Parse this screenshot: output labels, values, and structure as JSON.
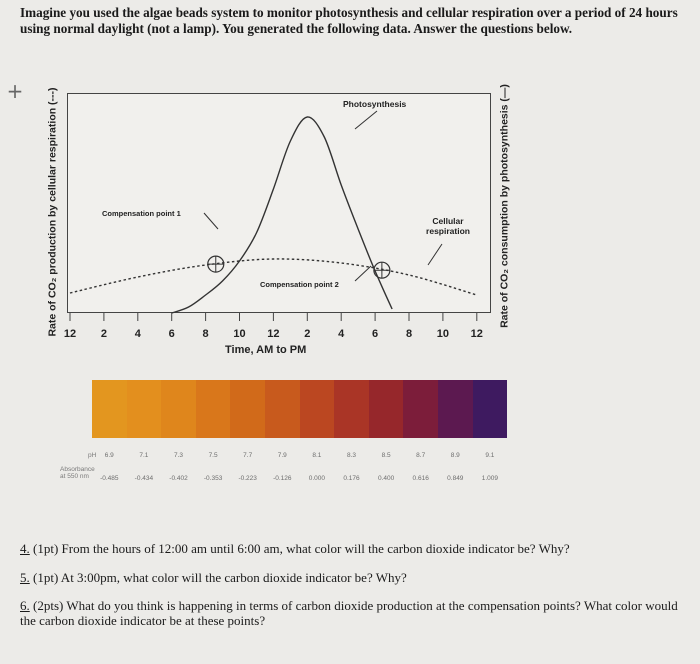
{
  "intro_text": "Imagine you used the algae beads system to monitor photosynthesis and cellular respiration over a period of 24 hours using normal daylight (not a lamp). You generated the following data. Answer the questions below.",
  "plus_glyph": "+",
  "chart_data": {
    "type": "line",
    "xlabel": "Time, AM to PM",
    "x_tick_labels": [
      "12",
      "2",
      "4",
      "6",
      "8",
      "10",
      "12",
      "2",
      "4",
      "6",
      "8",
      "10",
      "12"
    ],
    "ylabel_left": "Rate of CO₂ production by cellular respiration (---)",
    "ylabel_right": "Rate of CO₂ consumption by photosynthesis (—)",
    "annotations": {
      "photosynthesis": "Photosynthesis",
      "cellular_respiration": "Cellular respiration",
      "compensation_point_1": "Compensation point 1",
      "compensation_point_2": "Compensation point 2"
    },
    "series": [
      {
        "name": "Photosynthesis",
        "style": "solid",
        "points": [
          [
            6,
            0
          ],
          [
            7,
            3
          ],
          [
            8,
            9
          ],
          [
            9,
            16
          ],
          [
            10,
            26
          ],
          [
            11,
            40
          ],
          [
            12,
            62
          ],
          [
            13,
            86
          ],
          [
            14,
            98
          ],
          [
            15,
            88
          ],
          [
            16,
            64
          ],
          [
            17,
            42
          ],
          [
            18,
            21
          ],
          [
            19,
            2
          ]
        ]
      },
      {
        "name": "Cellular respiration",
        "style": "dashed",
        "points": [
          [
            0,
            10
          ],
          [
            4,
            18
          ],
          [
            8,
            24
          ],
          [
            12,
            27
          ],
          [
            16,
            25
          ],
          [
            20,
            19
          ],
          [
            24,
            9
          ]
        ]
      }
    ],
    "compensation_points": [
      {
        "name": "Compensation point 1",
        "x": 8.6
      },
      {
        "name": "Compensation point 2",
        "x": 18.4
      }
    ],
    "y_axis_values_shown": false
  },
  "indicator_scale": {
    "ph_label": "pH",
    "absorbance_label": "Absorbance at 550 nm",
    "swatches": [
      {
        "ph": "6.9",
        "absorbance": "-0.485",
        "color": "#e3961f"
      },
      {
        "ph": "7.1",
        "absorbance": "-0.434",
        "color": "#e38f1e"
      },
      {
        "ph": "7.3",
        "absorbance": "-0.402",
        "color": "#df861c"
      },
      {
        "ph": "7.5",
        "absorbance": "-0.353",
        "color": "#d9771b"
      },
      {
        "ph": "7.7",
        "absorbance": "-0.223",
        "color": "#d16a1a"
      },
      {
        "ph": "7.9",
        "absorbance": "-0.126",
        "color": "#c85a1d"
      },
      {
        "ph": "8.1",
        "absorbance": "0.000",
        "color": "#bb4721"
      },
      {
        "ph": "8.3",
        "absorbance": "0.176",
        "color": "#aa3526"
      },
      {
        "ph": "8.5",
        "absorbance": "0.400",
        "color": "#96272b"
      },
      {
        "ph": "8.7",
        "absorbance": "0.616",
        "color": "#7c1d3a"
      },
      {
        "ph": "8.9",
        "absorbance": "0.849",
        "color": "#5c1950"
      },
      {
        "ph": "9.1",
        "absorbance": "1.009",
        "color": "#3e1a60"
      }
    ]
  },
  "questions": [
    {
      "number": "4.",
      "text": " (1pt) From the hours of 12:00 am until 6:00 am, what color will the carbon dioxide indicator be? Why?"
    },
    {
      "number": "5.",
      "text": " (1pt) At 3:00pm, what color will the carbon dioxide indicator be? Why?"
    },
    {
      "number": "6.",
      "text": " (2pts) What do you think is happening in terms of carbon dioxide production at the compensation points? What color would the carbon dioxide indicator be at these points?"
    }
  ]
}
